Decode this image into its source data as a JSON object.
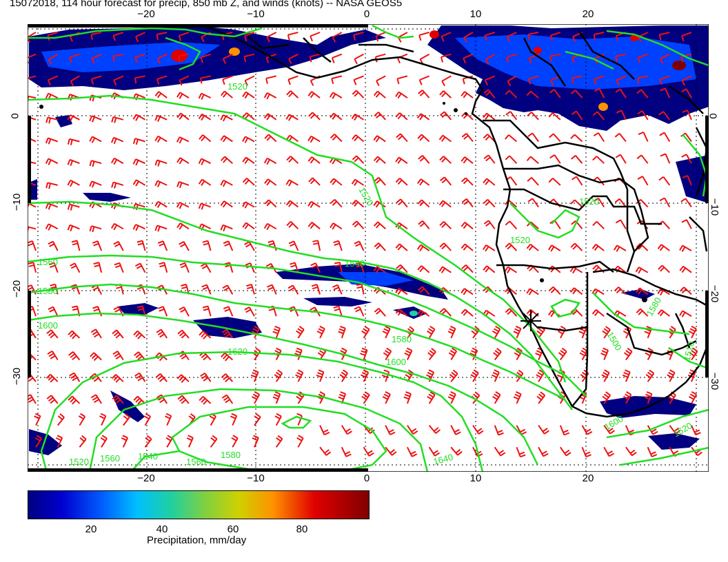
{
  "title": "15072018, 114 hour forecast for precip, 850 mb Z, and winds (knots) -- NASA GEOS5",
  "axes": {
    "lon_ticks": [
      "−20",
      "−10",
      "0",
      "10",
      "20"
    ],
    "lat_ticks": [
      "0",
      "−10",
      "−20",
      "−30"
    ],
    "lon_range": [
      -31,
      31
    ],
    "lat_range": [
      -40,
      10
    ]
  },
  "contour_labels": [
    "1520",
    "1520",
    "1520",
    "1540",
    "1560",
    "1580",
    "1600",
    "1620",
    "1640",
    "1600",
    "1580",
    "1560",
    "1520",
    "1540",
    "1560",
    "1580",
    "1600",
    "1620",
    "1520",
    "1500",
    "1510",
    "1580"
  ],
  "colorbar": {
    "ticks": [
      "20",
      "40",
      "60",
      "80"
    ],
    "label": "Precipitation, mm/day",
    "min": 0,
    "max": 100
  },
  "colors": {
    "contour": "#22dd22",
    "wind": "#ee1111",
    "precip_low": "#000080",
    "precip_mid": "#0000ff",
    "coast": "#000000"
  },
  "marker_icon": "asterisk-marker"
}
